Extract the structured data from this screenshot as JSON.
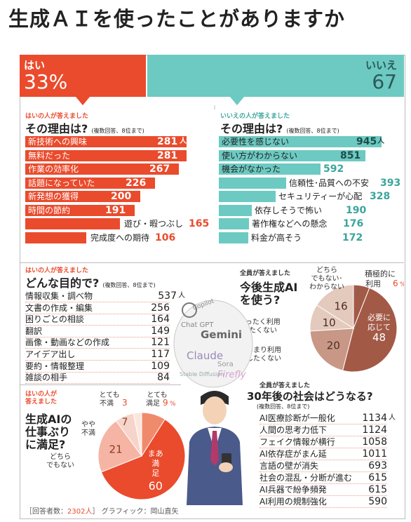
{
  "title": "生成ＡＩを使ったことがありますか",
  "colors": {
    "yes": "#ea4b2d",
    "no": "#6ccac2",
    "yes_light": "#f6b5a4",
    "no_light": "#a9ded9",
    "pie_dark": "#a25a47",
    "pie_mid": "#c99786",
    "pie_light": "#e4c9bd"
  },
  "top": {
    "yes_label": "はい",
    "yes_value": "33%",
    "no_label": "いいえ",
    "no_value": "67"
  },
  "yes_reasons": {
    "small": "はいの人が答えました",
    "big": "その理由は?",
    "note": "(複数回答、8位まで)",
    "unit": "人",
    "items": [
      {
        "label": "新技術への興味",
        "value": 281
      },
      {
        "label": "無料だった",
        "value": 281
      },
      {
        "label": "作業の効率化",
        "value": 267
      },
      {
        "label": "話題になっていた",
        "value": 226
      },
      {
        "label": "新発想の獲得",
        "value": 200
      },
      {
        "label": "時間の節約",
        "value": 191
      },
      {
        "label": "遊び・暇つぶし",
        "value": 165
      },
      {
        "label": "完成度への期待",
        "value": 106
      }
    ]
  },
  "no_reasons": {
    "small": "いいえの人が答えました",
    "big": "その理由は?",
    "note": "(複数回答、8位まで)",
    "unit": "人",
    "items": [
      {
        "label": "必要性を感じない",
        "value": 945
      },
      {
        "label": "使い方がわからない",
        "value": 851
      },
      {
        "label": "機会がなかった",
        "value": 592
      },
      {
        "label": "信頼性･品質への不安",
        "value": 393
      },
      {
        "label": "セキュリティーが心配",
        "value": 328
      },
      {
        "label": "依存しそうで怖い",
        "value": 190
      },
      {
        "label": "著作権などへの懸念",
        "value": 176
      },
      {
        "label": "料金が高そう",
        "value": 172
      }
    ]
  },
  "purpose": {
    "small": "はいの人が答えました",
    "big": "どんな目的で?",
    "note": "(複数回答、8位まで)",
    "unit": "人",
    "items": [
      {
        "label": "情報収集・調べ物",
        "value": 537
      },
      {
        "label": "文書の作成・編集",
        "value": 256
      },
      {
        "label": "困りごとの相談",
        "value": 164
      },
      {
        "label": "翻訳",
        "value": 149
      },
      {
        "label": "画像・動画などの作成",
        "value": 121
      },
      {
        "label": "アイデア出し",
        "value": 117
      },
      {
        "label": "要約・情報整理",
        "value": 109
      },
      {
        "label": "雑談の相手",
        "value": 84
      }
    ]
  },
  "future_use": {
    "small": "全員が答えました",
    "big1": "今後生成AI",
    "big2": "を使う?",
    "unit": "%",
    "slices": [
      {
        "label": "積極的に利用",
        "value": 6
      },
      {
        "label": "必要に応じて",
        "value": 48
      },
      {
        "label": "あまり利用したくない",
        "value": 20
      },
      {
        "label": "まったく利用したくない",
        "value": 10
      },
      {
        "label": "どちらでもない・わからない",
        "value": 16
      }
    ],
    "label_texts": {
      "active": "積極的に",
      "active2": "利用",
      "need1": "必要に",
      "need2": "応じて",
      "rather1": "あまり利用",
      "rather2": "したくない",
      "never1": "まったく利用",
      "never2": "したくない",
      "dk1": "どちら",
      "dk2": "でもない･",
      "dk3": "わからない"
    }
  },
  "satisfaction": {
    "small1": "はいの人が",
    "small2": "答えました",
    "big1": "生成AIの",
    "big2": "仕事ぶり",
    "big3": "に満足?",
    "unit": "%",
    "slices": [
      {
        "label": "とても満足",
        "value": 9
      },
      {
        "label": "まあ満足",
        "value": 60
      },
      {
        "label": "どちらでもない",
        "value": 21
      },
      {
        "label": "やや不満",
        "value": 7
      },
      {
        "label": "とても不満",
        "value": 3
      }
    ],
    "label_texts": {
      "vs1": "とても",
      "vs2": "満足",
      "ms1": "まあ",
      "ms2": "満",
      "ms3": "足",
      "neither1": "どちら",
      "neither2": "でもない",
      "sd1": "やや",
      "sd2": "不満",
      "vd1": "とても",
      "vd2": "不満"
    }
  },
  "society": {
    "small": "全員が答えました",
    "big": "30年後の社会はどうなる?",
    "note": "(複数回答、8位まで)",
    "unit": "人",
    "items": [
      {
        "label": "AI医療診断が一般化",
        "value": 1134
      },
      {
        "label": "人間の思考力低下",
        "value": 1124
      },
      {
        "label": "フェイク情報が横行",
        "value": 1058
      },
      {
        "label": "AI依存症がまん延",
        "value": 1011
      },
      {
        "label": "言語の壁が消失",
        "value": 693
      },
      {
        "label": "社会の混乱・分断が進む",
        "value": 615
      },
      {
        "label": "AI兵器で紛争頻発",
        "value": 615
      },
      {
        "label": "AI利用の規制強化",
        "value": 590
      }
    ]
  },
  "ai_names": [
    "Gemini",
    "Chat GPT",
    "Claude",
    "Sora",
    "Firefly",
    "Stable Diffusion",
    "Copilot"
  ],
  "footer": {
    "respondents_prefix": "［回答者数：",
    "respondents_value": "2302人",
    "respondents_suffix": "］",
    "credit": "グラフィック：岡山直矢"
  }
}
